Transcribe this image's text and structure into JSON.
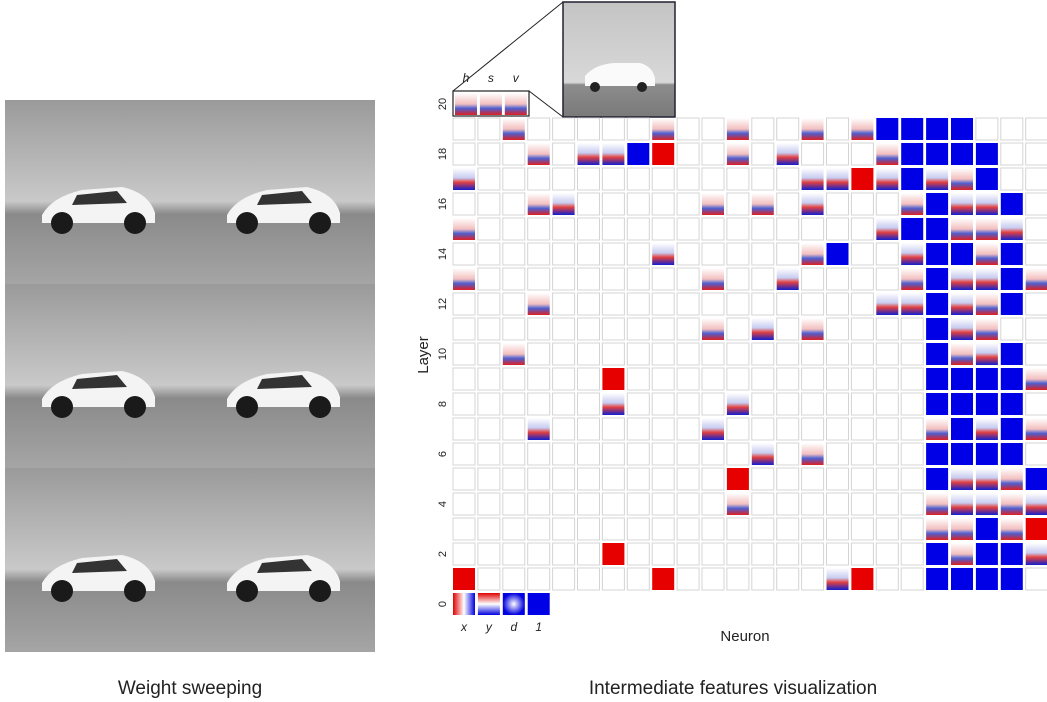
{
  "left_panel": {
    "caption": "Weight sweeping"
  },
  "right_panel": {
    "caption": "Intermediate features visualization",
    "y_axis_label": "Layer",
    "x_axis_label": "Neuron",
    "layer_ticks": [
      0,
      2,
      4,
      6,
      8,
      10,
      12,
      14,
      16,
      18,
      20
    ],
    "input_labels": [
      "x",
      "y",
      "d",
      "1"
    ],
    "output_labels": [
      "h",
      "s",
      "v"
    ]
  }
}
